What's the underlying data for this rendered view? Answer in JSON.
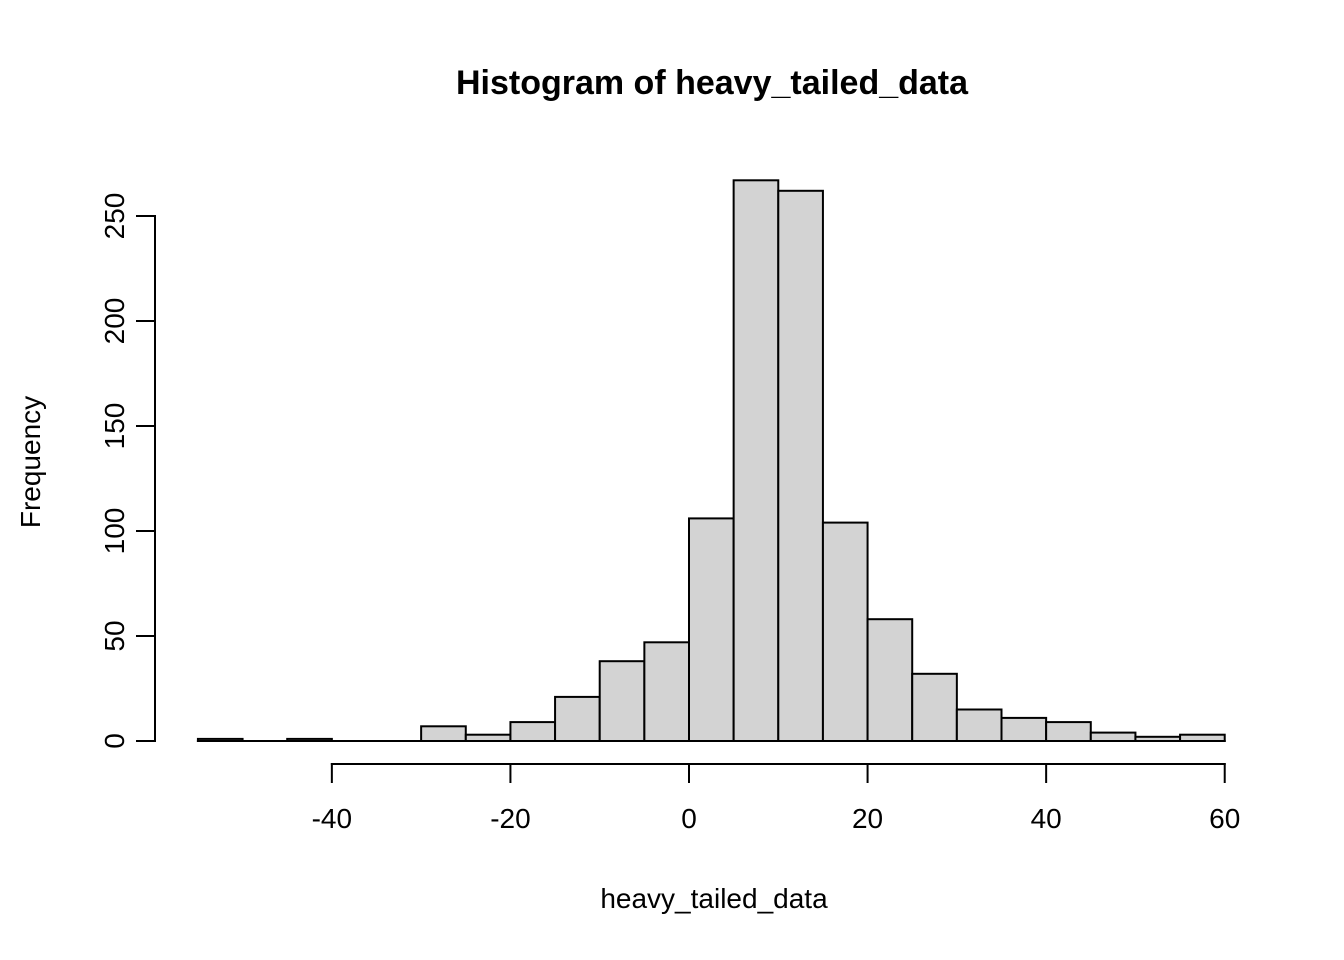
{
  "chart_data": {
    "type": "bar",
    "variant": "histogram",
    "title": "Histogram of heavy_tailed_data",
    "xlabel": "heavy_tailed_data",
    "ylabel": "Frequency",
    "breaks": [
      -55,
      -50,
      -45,
      -40,
      -35,
      -30,
      -25,
      -20,
      -15,
      -10,
      -5,
      0,
      5,
      10,
      15,
      20,
      25,
      30,
      35,
      40,
      45,
      50,
      55,
      60
    ],
    "counts": [
      1,
      0,
      1,
      0,
      0,
      7,
      3,
      9,
      21,
      38,
      47,
      106,
      267,
      262,
      104,
      58,
      32,
      15,
      11,
      9,
      4,
      2,
      3
    ],
    "bin_width": 5,
    "x_ticks": [
      -40,
      -20,
      0,
      20,
      40,
      60
    ],
    "y_ticks": [
      0,
      50,
      100,
      150,
      200,
      250
    ],
    "xlim": [
      -59.6,
      64.6
    ],
    "ylim": [
      0,
      267
    ],
    "grid": "off",
    "legend": "none",
    "colors": {
      "bar_fill": "#d3d3d3",
      "bar_stroke": "#000000",
      "axis": "#000000",
      "text": "#000000",
      "background": "#ffffff"
    }
  }
}
